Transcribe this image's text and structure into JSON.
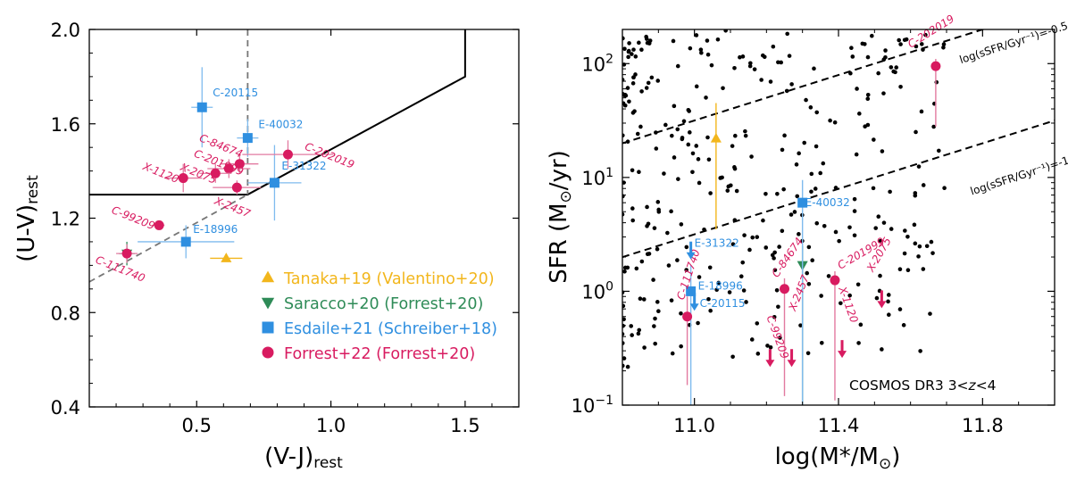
{
  "chart_data": [
    {
      "type": "scatter",
      "xlabel": "(V-J)",
      "xlabel_sub": "rest",
      "ylabel": "(U-V)",
      "ylabel_sub": "rest",
      "xlim": [
        0.1,
        1.7
      ],
      "ylim": [
        0.4,
        2.0
      ],
      "xticks": [
        0.5,
        1.0,
        1.5
      ],
      "xtick_labels": [
        "0.5",
        "1.0",
        "1.5"
      ],
      "yticks": [
        0.4,
        0.8,
        1.2,
        1.6,
        2.0
      ],
      "ytick_labels": [
        "0.4",
        "0.8",
        "1.2",
        "1.6",
        "2.0"
      ],
      "boundary_line": [
        [
          0.1,
          1.3
        ],
        [
          0.69,
          1.3
        ],
        [
          1.5,
          1.8
        ],
        [
          1.5,
          2.0
        ]
      ],
      "dashed_vertical_x": 0.69,
      "dashed_diagonal": [
        [
          0.1,
          0.93
        ],
        [
          0.69,
          1.3
        ]
      ],
      "legend": [
        {
          "label": "Tanaka+19 (Valentino+20)",
          "color": "#f2b61c",
          "marker": "triangle-up"
        },
        {
          "label": "Saracco+20 (Forrest+20)",
          "color": "#2e8b57",
          "marker": "triangle-down"
        },
        {
          "label": "Esdaile+21 (Schreiber+18)",
          "color": "#2f8fe0",
          "marker": "square"
        },
        {
          "label": "Forrest+22 (Forrest+20)",
          "color": "#d81b60",
          "marker": "circle"
        }
      ],
      "series": [
        {
          "name": "Tanaka+19 (Valentino+20)",
          "color": "#f2b61c",
          "marker": "triangle-up",
          "points": [
            {
              "x": 0.61,
              "y": 1.03,
              "xerr": 0.06,
              "yerr": 0.0,
              "label": ""
            }
          ]
        },
        {
          "name": "Saracco+20 (Forrest+20)",
          "color": "#2e8b57",
          "marker": "triangle-down",
          "points": [
            {
              "x": 0.24,
              "y": 1.05,
              "xerr": 0.03,
              "yerr": 0.05,
              "label": ""
            }
          ]
        },
        {
          "name": "Esdaile+21 (Schreiber+18)",
          "color": "#2f8fe0",
          "marker": "square",
          "points": [
            {
              "x": 0.52,
              "y": 1.67,
              "xerr": 0.04,
              "yerr": 0.17,
              "label": "C-20115"
            },
            {
              "x": 0.69,
              "y": 1.54,
              "xerr": 0.04,
              "yerr": 0.08,
              "label": "E-40032"
            },
            {
              "x": 0.79,
              "y": 1.35,
              "xerr": 0.1,
              "yerr": 0.16,
              "label": "E-31322"
            },
            {
              "x": 0.46,
              "y": 1.1,
              "xerr": 0.18,
              "yerr": 0.07,
              "label": "E-18996"
            }
          ]
        },
        {
          "name": "Forrest+22 (Forrest+20)",
          "color": "#d81b60",
          "marker": "circle",
          "points": [
            {
              "x": 0.84,
              "y": 1.47,
              "xerr": 0.17,
              "yerr": 0.06,
              "label": "C-202019"
            },
            {
              "x": 0.66,
              "y": 1.43,
              "xerr": 0.07,
              "yerr": 0.04,
              "label": "C-84674"
            },
            {
              "x": 0.62,
              "y": 1.41,
              "xerr": 0.08,
              "yerr": 0.04,
              "label": "C-201999"
            },
            {
              "x": 0.57,
              "y": 1.39,
              "xerr": 0.06,
              "yerr": 0.04,
              "label": "X-2075"
            },
            {
              "x": 0.45,
              "y": 1.37,
              "xerr": 0.07,
              "yerr": 0.06,
              "label": "X-1120"
            },
            {
              "x": 0.65,
              "y": 1.33,
              "xerr": 0.09,
              "yerr": 0.03,
              "label": "X-2457"
            },
            {
              "x": 0.36,
              "y": 1.17,
              "xerr": 0.02,
              "yerr": 0.02,
              "label": "C-99209"
            },
            {
              "x": 0.24,
              "y": 1.05,
              "xerr": 0.04,
              "yerr": 0.04,
              "label": "C-111740"
            }
          ]
        }
      ]
    },
    {
      "type": "scatter",
      "xlabel": "log(M",
      "xlabel_star": "*",
      "xlabel_tail": "/M",
      "xlabel_sun": "⊙",
      "xlabel_close": ")",
      "ylabel": "SFR (M",
      "ylabel_sun": "⊙",
      "ylabel_tail": "/yr)",
      "xlim": [
        10.8,
        12.0
      ],
      "ylim_log10": [
        -1,
        2.3
      ],
      "yscale": "log",
      "xticks": [
        11.0,
        11.4,
        11.8
      ],
      "xtick_labels": [
        "11.0",
        "11.4",
        "11.8"
      ],
      "yticks_exp": [
        -1,
        0,
        1,
        2
      ],
      "ytick_base": "10",
      "ytick_exponents": [
        "−1",
        "0",
        "1",
        "2"
      ],
      "annotation": "COSMOS DR3 3<z<4",
      "annotation_prefix": "COSMOS DR3 3<",
      "annotation_z": "z",
      "annotation_suffix": "<4",
      "ssfr_lines": [
        {
          "log_ssfr": -0.5,
          "label": "log(sSFR/Gyr⁻¹)=-0.5"
        },
        {
          "log_ssfr": -1.5,
          "label": "log(sSFR/Gyr⁻¹)=-1.5"
        }
      ],
      "labeled_points": [
        {
          "x": 11.06,
          "y": 22,
          "lo": 3.5,
          "hi": 45,
          "color": "#f2b61c",
          "marker": "triangle-up",
          "label": ""
        },
        {
          "x": 11.3,
          "y": 1.7,
          "lo": 0.1,
          "hi": 2.5,
          "color": "#2e8b57",
          "marker": "triangle-down",
          "label": ""
        },
        {
          "x": 11.3,
          "y": 6.0,
          "lo": 0.1,
          "hi": 9.5,
          "color": "#2f8fe0",
          "marker": "square",
          "label": "E-40032"
        },
        {
          "x": 10.99,
          "y": 1.0,
          "lo": 0.1,
          "hi": 1.7,
          "color": "#2f8fe0",
          "marker": "square",
          "label": "E-18996"
        },
        {
          "x": 10.98,
          "y": 0.6,
          "lo": 0.15,
          "hi": 0.9,
          "color": "#d81b60",
          "marker": "circle",
          "label": "C-111740"
        },
        {
          "x": 11.25,
          "y": 1.05,
          "lo": 0.12,
          "hi": 1.3,
          "color": "#d81b60",
          "marker": "circle",
          "label": "C-84674"
        },
        {
          "x": 11.39,
          "y": 1.25,
          "lo": 0.11,
          "hi": 1.5,
          "color": "#d81b60",
          "marker": "circle",
          "label": "C-201999"
        },
        {
          "x": 11.67,
          "y": 95,
          "lo": 28,
          "hi": 110,
          "color": "#d81b60",
          "marker": "circle",
          "label": "C-202019"
        }
      ],
      "upper_limits": [
        {
          "x": 10.99,
          "y": 2.2,
          "color": "#2f8fe0",
          "label": "E-31322"
        },
        {
          "x": 11.0,
          "y": 0.78,
          "color": "#2f8fe0",
          "label": "C-20115"
        },
        {
          "x": 11.21,
          "y": 0.25,
          "color": "#d81b60",
          "label": "C-99209"
        },
        {
          "x": 11.27,
          "y": 0.25,
          "color": "#d81b60",
          "label": "X-2457"
        },
        {
          "x": 11.41,
          "y": 0.3,
          "color": "#d81b60",
          "label": "X-1120"
        },
        {
          "x": 11.52,
          "y": 0.82,
          "color": "#d81b60",
          "label": "X-2075"
        }
      ]
    }
  ]
}
